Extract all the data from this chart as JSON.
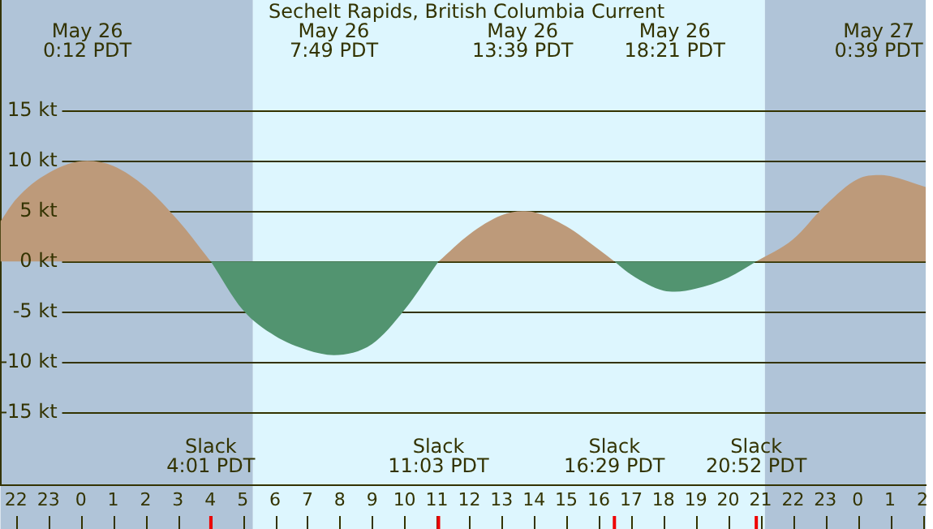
{
  "chart_data": {
    "type": "area",
    "title": "Sechelt Rapids, British Columbia Current",
    "x": [
      "--05-25T21:31",
      "--05-25T22:00",
      "--05-25T23:00",
      "--05-26T00:12",
      "--05-26T01:00",
      "--05-26T02:00",
      "--05-26T03:00",
      "--05-26T04:01",
      "--05-26T05:00",
      "--05-26T06:00",
      "--05-26T07:00",
      "--05-26T07:49",
      "--05-26T09:00",
      "--05-26T10:00",
      "--05-26T11:03",
      "--05-26T12:00",
      "--05-26T13:00",
      "--05-26T13:39",
      "--05-26T14:00",
      "--05-26T15:00",
      "--05-26T16:00",
      "--05-26T16:29",
      "--05-26T17:00",
      "--05-26T18:00",
      "--05-26T18:21",
      "--05-26T19:00",
      "--05-26T20:00",
      "--05-26T20:52",
      "--05-26T22:00",
      "--05-26T23:00",
      "--05-27T00:00",
      "--05-27T00:39",
      "--05-27T01:00",
      "--05-27T02:06"
    ],
    "series": [
      {
        "color": "#bd9a7a",
        "values": [
          4.0,
          6.2,
          8.8,
          10,
          9.5,
          7.4,
          4.1,
          0,
          null,
          null,
          null,
          null,
          null,
          null,
          0,
          2.7,
          4.6,
          5.0,
          4.9,
          3.5,
          1.2,
          0,
          null,
          null,
          null,
          null,
          null,
          0,
          2.2,
          5.6,
          8.2,
          8.6,
          8.5,
          7.4
        ]
      },
      {
        "color": "#529470",
        "values": [
          null,
          null,
          null,
          null,
          null,
          null,
          null,
          0,
          -4.8,
          -7.4,
          -8.8,
          -9.3,
          -8.2,
          -4.8,
          0,
          null,
          null,
          null,
          null,
          null,
          null,
          0,
          -1.3,
          -2.9,
          -3.0,
          -2.7,
          -1.6,
          0,
          null,
          null,
          null,
          null,
          null,
          null
        ]
      }
    ],
    "xlim": [
      "--05-25T21:31",
      "--05-27T02:06"
    ],
    "xticks": [
      {
        "value": "--05-25T22:00",
        "label": "22"
      },
      {
        "value": "--05-25T23:00",
        "label": "23"
      },
      {
        "value": "--05-26T00:00",
        "label": "0"
      },
      {
        "value": "--05-26T01:00",
        "label": "1"
      },
      {
        "value": "--05-26T02:00",
        "label": "2"
      },
      {
        "value": "--05-26T03:00",
        "label": "3"
      },
      {
        "value": "--05-26T04:00",
        "label": "4"
      },
      {
        "value": "--05-26T05:00",
        "label": "5"
      },
      {
        "value": "--05-26T06:00",
        "label": "6"
      },
      {
        "value": "--05-26T07:00",
        "label": "7"
      },
      {
        "value": "--05-26T08:00",
        "label": "8"
      },
      {
        "value": "--05-26T09:00",
        "label": "9"
      },
      {
        "value": "--05-26T10:00",
        "label": "10"
      },
      {
        "value": "--05-26T11:00",
        "label": "11"
      },
      {
        "value": "--05-26T12:00",
        "label": "12"
      },
      {
        "value": "--05-26T13:00",
        "label": "13"
      },
      {
        "value": "--05-26T14:00",
        "label": "14"
      },
      {
        "value": "--05-26T15:00",
        "label": "15"
      },
      {
        "value": "--05-26T16:00",
        "label": "16"
      },
      {
        "value": "--05-26T17:00",
        "label": "17"
      },
      {
        "value": "--05-26T18:00",
        "label": "18"
      },
      {
        "value": "--05-26T19:00",
        "label": "19"
      },
      {
        "value": "--05-26T20:00",
        "label": "20"
      },
      {
        "value": "--05-26T21:00",
        "label": "21"
      },
      {
        "value": "--05-26T22:00",
        "label": "22"
      },
      {
        "value": "--05-26T23:00",
        "label": "23"
      },
      {
        "value": "--05-27T00:00",
        "label": "0"
      },
      {
        "value": "--05-27T01:00",
        "label": "1"
      },
      {
        "value": "--05-27T02:00",
        "label": "2"
      }
    ],
    "ylim": [
      -22.2,
      26
    ],
    "yticks": [
      {
        "value": -15,
        "label": "-15 kt"
      },
      {
        "value": -10,
        "label": "-10 kt"
      },
      {
        "value": -5,
        "label": "-5 kt"
      },
      {
        "value": 0,
        "label": "0 kt"
      },
      {
        "value": 5,
        "label": "5 kt"
      },
      {
        "value": 10,
        "label": "10 kt"
      },
      {
        "value": 15,
        "label": "15 kt"
      }
    ],
    "grid": "y",
    "bands": [
      {
        "axis": "x",
        "from": "--05-25T21:31",
        "to": "--05-26T05:19",
        "color": "#b0c4d8"
      },
      {
        "axis": "x",
        "from": "--05-26T05:19",
        "to": "--05-26T21:08",
        "color": "#ddf6fe"
      },
      {
        "axis": "x",
        "from": "--05-26T21:08",
        "to": "--05-27T02:06",
        "color": "#b0c4d8"
      }
    ],
    "annotations": [
      "May 26\n0:12 PDT",
      "May 26\n7:49 PDT",
      "May 26\n13:39 PDT",
      "May 26\n18:21 PDT",
      "May 27\n0:39 PDT",
      "Slack\n4:01 PDT",
      "Slack\n11:03 PDT",
      "Slack\n16:29 PDT",
      "Slack\n20:52 PDT"
    ]
  }
}
